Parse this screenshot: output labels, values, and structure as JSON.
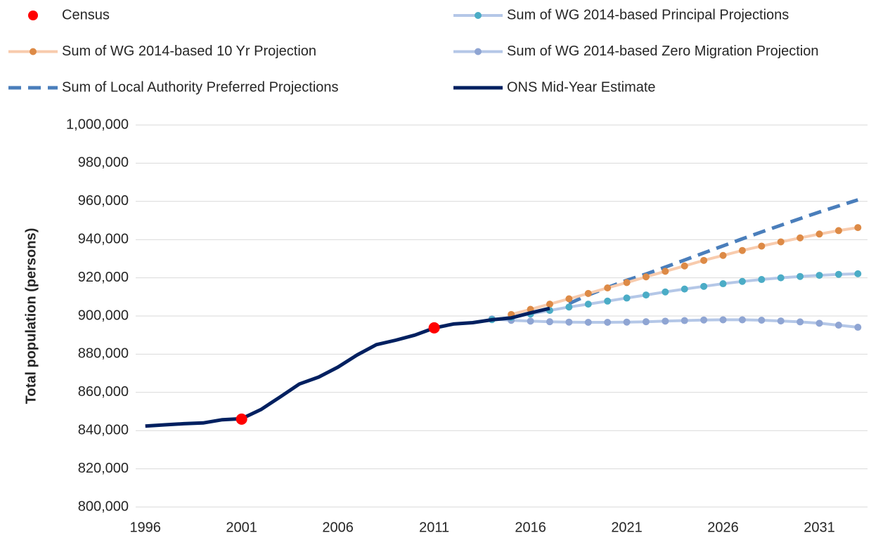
{
  "chart_data": {
    "type": "line",
    "y_label": "Total population (persons)",
    "x": [
      1996,
      1997,
      1998,
      1999,
      2000,
      2001,
      2002,
      2003,
      2004,
      2005,
      2006,
      2007,
      2008,
      2009,
      2010,
      2011,
      2012,
      2013,
      2014,
      2015,
      2016,
      2017,
      2018,
      2019,
      2020,
      2021,
      2022,
      2023,
      2024,
      2025,
      2026,
      2027,
      2028,
      2029,
      2030,
      2031,
      2032,
      2033
    ],
    "xlim": [
      1995.5,
      2033.5
    ],
    "xticks": [
      1996,
      2001,
      2006,
      2011,
      2016,
      2021,
      2026,
      2031
    ],
    "ylim": [
      800000,
      1000000
    ],
    "yticks": [
      {
        "value": 800000,
        "label": "800,000"
      },
      {
        "value": 820000,
        "label": "820,000"
      },
      {
        "value": 840000,
        "label": "840,000"
      },
      {
        "value": 860000,
        "label": "860,000"
      },
      {
        "value": 880000,
        "label": "880,000"
      },
      {
        "value": 900000,
        "label": "900,000"
      },
      {
        "value": 920000,
        "label": "920,000"
      },
      {
        "value": 940000,
        "label": "940,000"
      },
      {
        "value": 960000,
        "label": "960,000"
      },
      {
        "value": 980000,
        "label": "980,000"
      },
      {
        "value": 1000000,
        "label": "1,000,000"
      }
    ],
    "grid": true,
    "legend": "top",
    "series": [
      {
        "name": "Census",
        "color": "#ff0000",
        "line": false,
        "marker": "circle",
        "values": [
          null,
          null,
          null,
          null,
          null,
          846000,
          null,
          null,
          null,
          null,
          null,
          null,
          null,
          null,
          null,
          893800,
          null,
          null,
          null,
          null,
          null,
          null,
          null,
          null,
          null,
          null,
          null,
          null,
          null,
          null,
          null,
          null,
          null,
          null,
          null,
          null,
          null,
          null
        ]
      },
      {
        "name": "Sum of WG 2014-based Principal Projections",
        "color": "#b4c7e7",
        "marker_color": "#4bacc6",
        "line": true,
        "marker": "circle",
        "values": [
          null,
          null,
          null,
          null,
          null,
          null,
          null,
          null,
          null,
          null,
          null,
          null,
          null,
          null,
          null,
          null,
          null,
          null,
          898100,
          899300,
          901000,
          902900,
          904700,
          906200,
          907800,
          909400,
          911000,
          912600,
          914100,
          915500,
          916900,
          918100,
          919100,
          920000,
          920700,
          921300,
          921800,
          922100
        ]
      },
      {
        "name": "Sum of WG 2014-based 10 Yr Projection",
        "color": "#f8cbad",
        "marker_color": "#dd8a46",
        "line": true,
        "marker": "circle",
        "values": [
          null,
          null,
          null,
          null,
          null,
          null,
          null,
          null,
          null,
          null,
          null,
          null,
          null,
          null,
          null,
          null,
          null,
          null,
          null,
          900800,
          903500,
          906200,
          909000,
          911800,
          914700,
          917500,
          920500,
          923400,
          926200,
          929100,
          931700,
          934300,
          936600,
          938800,
          940900,
          942900,
          944700,
          946300
        ]
      },
      {
        "name": "Sum of WG 2014-based Zero Migration Projection",
        "color": "#b4c7e7",
        "marker_color": "#8fa5d3",
        "line": true,
        "marker": "circle",
        "values": [
          null,
          null,
          null,
          null,
          null,
          null,
          null,
          null,
          null,
          null,
          null,
          null,
          null,
          null,
          null,
          null,
          null,
          null,
          898500,
          897700,
          897300,
          897000,
          896800,
          896700,
          896700,
          896800,
          897000,
          897300,
          897600,
          897900,
          898000,
          898000,
          897800,
          897400,
          896900,
          896200,
          895200,
          894100
        ]
      },
      {
        "name": "Sum of Local Authority Preferred Projections",
        "color": "#4a7ebb",
        "line": true,
        "dash": "dashed",
        "values": [
          null,
          null,
          null,
          null,
          null,
          null,
          null,
          null,
          null,
          null,
          null,
          null,
          null,
          null,
          null,
          null,
          null,
          null,
          null,
          null,
          null,
          null,
          906500,
          911000,
          914900,
          918700,
          922000,
          925600,
          929300,
          933000,
          936700,
          940400,
          944000,
          947500,
          951000,
          954400,
          957600,
          960800
        ]
      },
      {
        "name": "ONS Mid-Year Estimate",
        "color": "#002060",
        "line": true,
        "values": [
          842400,
          843000,
          843600,
          844000,
          845700,
          846200,
          851000,
          857600,
          864400,
          868000,
          873200,
          879600,
          885000,
          887300,
          890000,
          893700,
          895800,
          896500,
          898000,
          899000,
          901600,
          904000,
          null,
          null,
          null,
          null,
          null,
          null,
          null,
          null,
          null,
          null,
          null,
          null,
          null,
          null,
          null,
          null
        ]
      }
    ]
  }
}
